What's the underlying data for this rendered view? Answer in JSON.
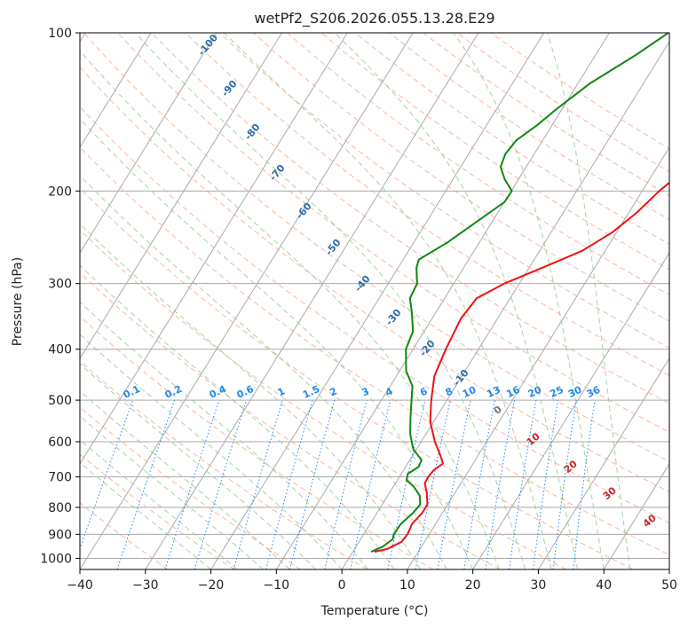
{
  "chart_data": {
    "type": "line",
    "chart_kind": "skew-T log-P diagram",
    "title": "wetPf2_S206.2026.055.13.28.E29",
    "xlabel": "Temperature (°C)",
    "ylabel": "Pressure (hPa)",
    "xlim": [
      -40,
      50
    ],
    "ylim": [
      1050,
      100
    ],
    "x_ticks": [
      "−40",
      "−30",
      "−20",
      "−10",
      "0",
      "10",
      "20",
      "30",
      "40",
      "50"
    ],
    "y_ticks": [
      "100",
      "200",
      "300",
      "400",
      "500",
      "600",
      "700",
      "800",
      "900",
      "1000"
    ],
    "dry_adiabat_labels": [
      "-100",
      "-90",
      "-80",
      "-70",
      "-60",
      "-50",
      "-40",
      "-30",
      "-20",
      "-10"
    ],
    "mixing_ratio_labels": [
      "0.1",
      "0.2",
      "0.4",
      "0.6",
      "1",
      "1.5",
      "2",
      "3",
      "4",
      "6",
      "8",
      "10",
      "13",
      "16",
      "20",
      "25",
      "30",
      "36"
    ],
    "moist_adiabat_labels": [
      "0",
      "10",
      "20",
      "30",
      "40"
    ],
    "colors": {
      "temperature": "#ee1111",
      "dewpoint": "#118811",
      "isotherm": "#aaaaaa",
      "dry_adiabat": "#f5a080",
      "moist_adiabat": "#90c890",
      "mixing_ratio": "#2288ee",
      "dry_label": "#2a6fa8",
      "moist_label": "#cc2222"
    },
    "series": [
      {
        "name": "Temperature",
        "points": [
          [
            972,
            3.3
          ],
          [
            960,
            5.0
          ],
          [
            930,
            6.5
          ],
          [
            900,
            6.7
          ],
          [
            860,
            6.4
          ],
          [
            820,
            6.9
          ],
          [
            790,
            6.9
          ],
          [
            750,
            5.7
          ],
          [
            720,
            4.5
          ],
          [
            700,
            4.4
          ],
          [
            680,
            4.6
          ],
          [
            660,
            5.4
          ],
          [
            640,
            4.4
          ],
          [
            600,
            2.1
          ],
          [
            550,
            -0.5
          ],
          [
            500,
            -2.4
          ],
          [
            450,
            -4.2
          ],
          [
            400,
            -5.0
          ],
          [
            350,
            -5.6
          ],
          [
            320,
            -5.1
          ],
          [
            300,
            -2.3
          ],
          [
            280,
            2.0
          ],
          [
            260,
            6.5
          ],
          [
            240,
            9.3
          ],
          [
            220,
            11.2
          ],
          [
            200,
            12.6
          ],
          [
            180,
            14.8
          ],
          [
            160,
            18.8
          ],
          [
            150,
            20.6
          ],
          [
            140,
            21.8
          ],
          [
            125,
            23.2
          ],
          [
            110,
            25.5
          ],
          [
            100,
            27.3
          ]
        ]
      },
      {
        "name": "Dewpoint",
        "points": [
          [
            972,
            2.8
          ],
          [
            950,
            4.1
          ],
          [
            920,
            4.9
          ],
          [
            900,
            4.6
          ],
          [
            860,
            4.7
          ],
          [
            820,
            5.5
          ],
          [
            790,
            5.8
          ],
          [
            760,
            4.9
          ],
          [
            730,
            3.1
          ],
          [
            710,
            1.4
          ],
          [
            690,
            1.0
          ],
          [
            670,
            2.0
          ],
          [
            650,
            1.8
          ],
          [
            620,
            -0.5
          ],
          [
            580,
            -2.4
          ],
          [
            540,
            -3.9
          ],
          [
            500,
            -5.4
          ],
          [
            470,
            -6.6
          ],
          [
            440,
            -9.0
          ],
          [
            400,
            -11.1
          ],
          [
            370,
            -11.7
          ],
          [
            340,
            -13.7
          ],
          [
            320,
            -15.3
          ],
          [
            300,
            -15.6
          ],
          [
            280,
            -17.2
          ],
          [
            270,
            -17.6
          ],
          [
            250,
            -14.8
          ],
          [
            230,
            -12.5
          ],
          [
            210,
            -10.0
          ],
          [
            200,
            -9.9
          ],
          [
            190,
            -12.1
          ],
          [
            180,
            -13.9
          ],
          [
            170,
            -14.4
          ],
          [
            160,
            -14.0
          ],
          [
            150,
            -12.3
          ],
          [
            140,
            -10.9
          ],
          [
            125,
            -8.2
          ],
          [
            110,
            -3.8
          ],
          [
            100,
            -1.0
          ]
        ]
      }
    ]
  }
}
